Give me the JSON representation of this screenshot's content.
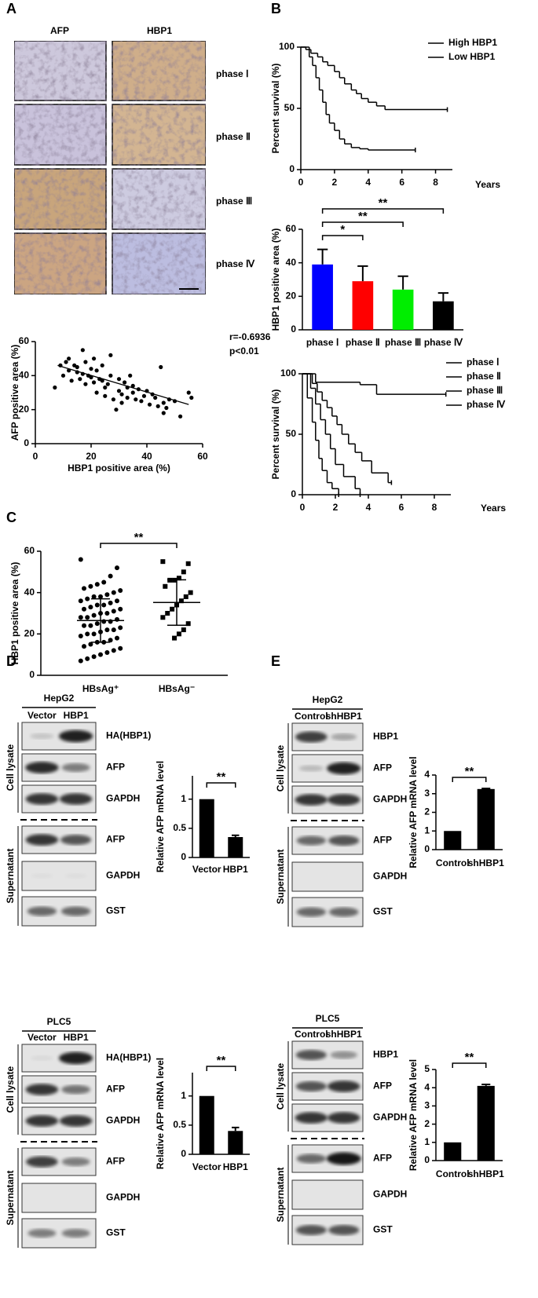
{
  "panels": [
    "A",
    "B",
    "C",
    "D",
    "E"
  ],
  "ihc": {
    "columns": [
      "AFP",
      "HBP1"
    ],
    "rows": [
      "phase Ⅰ",
      "phase Ⅱ",
      "phase Ⅲ",
      "phase Ⅳ"
    ]
  },
  "chart_data": [
    {
      "type": "scatter",
      "xlabel": "HBP1 positive area (%)",
      "ylabel": "AFP positive area (%)",
      "x": [
        7,
        9,
        10,
        11,
        12,
        12,
        13,
        14,
        15,
        15,
        16,
        17,
        17,
        18,
        18,
        19,
        20,
        20,
        21,
        21,
        22,
        22,
        23,
        24,
        24,
        25,
        25,
        26,
        27,
        27,
        28,
        29,
        30,
        30,
        31,
        31,
        32,
        33,
        33,
        34,
        35,
        35,
        36,
        37,
        38,
        39,
        40,
        41,
        42,
        43,
        44,
        45,
        46,
        46,
        47,
        48,
        50,
        52,
        55,
        56
      ],
      "values": [
        33,
        46,
        40,
        48,
        50,
        43,
        37,
        46,
        45,
        42,
        38,
        55,
        41,
        48,
        35,
        40,
        39,
        44,
        36,
        50,
        43,
        30,
        38,
        37,
        46,
        33,
        28,
        35,
        52,
        40,
        26,
        20,
        31,
        38,
        29,
        24,
        36,
        27,
        33,
        40,
        30,
        34,
        26,
        32,
        25,
        28,
        31,
        23,
        29,
        27,
        22,
        45,
        18,
        24,
        21,
        26,
        25,
        16,
        30,
        27
      ],
      "trend": {
        "x": [
          8,
          55
        ],
        "values": [
          46,
          23
        ]
      },
      "annotations": [
        "r=-0.6936",
        "p<0.01"
      ],
      "color": "#000000",
      "xlim": [
        0,
        60
      ],
      "xticks": [
        0,
        20,
        40,
        60
      ],
      "ylim": [
        0,
        60
      ],
      "yticks": [
        0,
        20,
        40,
        60
      ]
    },
    {
      "type": "step",
      "ylabel": "Percent survival (%)",
      "xlabel": "Years",
      "legend": "upper right",
      "series": [
        {
          "name": "High HBP1",
          "color": "#2f3fe0",
          "x": [
            0,
            0.3,
            0.6,
            1,
            1.3,
            1.6,
            2,
            2.3,
            2.6,
            3,
            3.3,
            3.6,
            4,
            4.5,
            5,
            8.7
          ],
          "values": [
            100,
            98,
            95,
            92,
            88,
            85,
            80,
            75,
            70,
            65,
            62,
            58,
            55,
            52,
            49,
            49
          ]
        },
        {
          "name": "Low HBP1",
          "color": "#e02020",
          "x": [
            0,
            0.5,
            0.7,
            0.9,
            1.1,
            1.3,
            1.5,
            1.7,
            2,
            2.3,
            2.6,
            3,
            3.5,
            4,
            6.8
          ],
          "values": [
            100,
            92,
            85,
            75,
            65,
            55,
            45,
            38,
            32,
            25,
            21,
            18,
            17,
            16,
            16
          ]
        }
      ],
      "xlim": [
        0,
        9
      ],
      "xticks": [
        0,
        2,
        4,
        6,
        8
      ],
      "ylim": [
        0,
        100
      ],
      "yticks": [
        0,
        50,
        100
      ]
    },
    {
      "type": "bar",
      "ylabel": "HBP1 positive area (%)",
      "categories": [
        "phase Ⅰ",
        "phase Ⅱ",
        "phase Ⅲ",
        "phase Ⅳ"
      ],
      "values": [
        39,
        29,
        24,
        17
      ],
      "errors": [
        9,
        9,
        8,
        5
      ],
      "colors": [
        "#0000ff",
        "#ff0000",
        "#00ee00",
        "#000000"
      ],
      "significance": [
        {
          "label": "*",
          "between": [
            "phase Ⅰ",
            "phase Ⅱ"
          ]
        },
        {
          "label": "**",
          "between": [
            "phase Ⅰ",
            "phase Ⅲ"
          ]
        },
        {
          "label": "**",
          "between": [
            "phase Ⅰ",
            "phase Ⅳ"
          ]
        }
      ],
      "ylim": [
        0,
        60
      ],
      "yticks": [
        0,
        20,
        40,
        60
      ]
    },
    {
      "type": "step",
      "ylabel": "Percent survival (%)",
      "xlabel": "Years",
      "legend": "upper right",
      "series": [
        {
          "name": "phase Ⅰ",
          "color": "#2f3fe0",
          "x": [
            0,
            0.8,
            3.5,
            4.5,
            8.7
          ],
          "values": [
            100,
            93,
            91,
            83,
            83
          ]
        },
        {
          "name": "phase Ⅱ",
          "color": "#e02020",
          "x": [
            0,
            0.6,
            0.9,
            1.2,
            1.5,
            1.8,
            2.1,
            2.4,
            2.8,
            3.2,
            3.6,
            4.2,
            5.2,
            5.4
          ],
          "values": [
            100,
            92,
            85,
            78,
            72,
            65,
            58,
            50,
            42,
            35,
            28,
            18,
            10,
            10
          ]
        },
        {
          "name": "phase Ⅲ",
          "color": "#10c010",
          "x": [
            0,
            0.5,
            0.8,
            1.1,
            1.4,
            1.7,
            2,
            2.5,
            3.2,
            3.5
          ],
          "values": [
            100,
            88,
            75,
            62,
            50,
            38,
            25,
            15,
            5,
            0
          ]
        },
        {
          "name": "phase Ⅳ",
          "color": "#000000",
          "x": [
            0,
            0.3,
            0.6,
            0.8,
            1,
            1.2,
            1.5,
            1.8,
            2.2
          ],
          "values": [
            100,
            80,
            60,
            45,
            30,
            20,
            10,
            5,
            0
          ]
        }
      ],
      "xlim": [
        0,
        9
      ],
      "xticks": [
        0,
        2,
        4,
        6,
        8
      ],
      "ylim": [
        0,
        100
      ],
      "yticks": [
        0,
        50,
        100
      ]
    },
    {
      "type": "dot",
      "ylabel": "HBP1 positive area (%)",
      "categories": [
        "HBsAg⁺",
        "HBsAg⁻"
      ],
      "groups": [
        [
          56,
          52,
          48,
          45,
          44,
          43,
          42,
          41,
          40,
          39,
          38,
          38,
          37,
          36,
          36,
          35,
          34,
          34,
          33,
          32,
          32,
          31,
          30,
          30,
          29,
          28,
          28,
          27,
          26,
          26,
          25,
          24,
          24,
          23,
          22,
          22,
          21,
          20,
          20,
          19,
          18,
          17,
          16,
          16,
          15,
          14,
          13,
          12,
          11,
          10,
          9,
          8,
          7
        ],
        [
          55,
          54,
          50,
          47,
          46,
          46,
          43,
          40,
          38,
          36,
          34,
          32,
          30,
          28,
          25,
          22,
          20,
          18
        ]
      ],
      "means": [
        26.5,
        35.2
      ],
      "sds": [
        10.5,
        11
      ],
      "significance": [
        {
          "label": "**",
          "between": [
            "HBsAg⁺",
            "HBsAg⁻"
          ]
        }
      ],
      "ylim": [
        0,
        60
      ],
      "yticks": [
        0,
        20,
        40,
        60
      ]
    },
    {
      "type": "bar",
      "ylabel": "Relative AFP mRNA level",
      "categories": [
        "Vector",
        "HBP1"
      ],
      "values": [
        1,
        0.35
      ],
      "errors": [
        null,
        0.03
      ],
      "color": "#000000",
      "significance": [
        {
          "label": "**",
          "between": [
            "Vector",
            "HBP1"
          ]
        }
      ],
      "ylim": [
        0,
        1.4
      ],
      "yticks": [
        0,
        0.5,
        1
      ]
    },
    {
      "type": "bar",
      "ylabel": "Relative AFP mRNA level",
      "categories": [
        "Control",
        "shHBP1"
      ],
      "values": [
        1,
        3.25
      ],
      "errors": [
        null,
        0.03
      ],
      "color": "#000000",
      "significance": [
        {
          "label": "**",
          "between": [
            "Control",
            "shHBP1"
          ]
        }
      ],
      "ylim": [
        0,
        4
      ],
      "yticks": [
        0,
        1,
        2,
        3,
        4
      ]
    },
    {
      "type": "bar",
      "ylabel": "Relative AFP mRNA level",
      "categories": [
        "Vector",
        "HBP1"
      ],
      "values": [
        1,
        0.4
      ],
      "errors": [
        null,
        0.06
      ],
      "color": "#000000",
      "significance": [
        {
          "label": "**",
          "between": [
            "Vector",
            "HBP1"
          ]
        }
      ],
      "ylim": [
        0,
        1.4
      ],
      "yticks": [
        0,
        0.5,
        1
      ]
    },
    {
      "type": "bar",
      "ylabel": "Relative AFP mRNA level",
      "categories": [
        "Control",
        "shHBP1"
      ],
      "values": [
        1,
        4.1
      ],
      "errors": [
        null,
        0.08
      ],
      "color": "#000000",
      "significance": [
        {
          "label": "**",
          "between": [
            "Control",
            "shHBP1"
          ]
        }
      ],
      "ylim": [
        0,
        5
      ],
      "yticks": [
        0,
        1,
        2,
        3,
        4,
        5
      ]
    }
  ],
  "blots": [
    {
      "cell_line": "HepG2",
      "lanes": [
        "Vector",
        "HBP1"
      ],
      "groups": [
        "Cell lysate",
        "Supernatant"
      ],
      "rows": [
        "HA(HBP1)",
        "AFP",
        "GAPDH",
        "AFP",
        "GAPDH",
        "GST"
      ]
    },
    {
      "cell_line": "HepG2",
      "lanes": [
        "Control",
        "shHBP1"
      ],
      "groups": [
        "Cell lysate",
        "Supernatant"
      ],
      "rows": [
        "HBP1",
        "AFP",
        "GAPDH",
        "AFP",
        "GAPDH",
        "GST"
      ]
    },
    {
      "cell_line": "PLC5",
      "lanes": [
        "Vector",
        "HBP1"
      ],
      "groups": [
        "Cell lysate",
        "Supernatant"
      ],
      "rows": [
        "HA(HBP1)",
        "AFP",
        "GAPDH",
        "AFP",
        "GAPDH",
        "GST"
      ]
    },
    {
      "cell_line": "PLC5",
      "lanes": [
        "Control",
        "shHBP1"
      ],
      "groups": [
        "Cell lysate",
        "Supernatant"
      ],
      "rows": [
        "HBP1",
        "AFP",
        "GAPDH",
        "AFP",
        "GAPDH",
        "GST"
      ]
    }
  ]
}
